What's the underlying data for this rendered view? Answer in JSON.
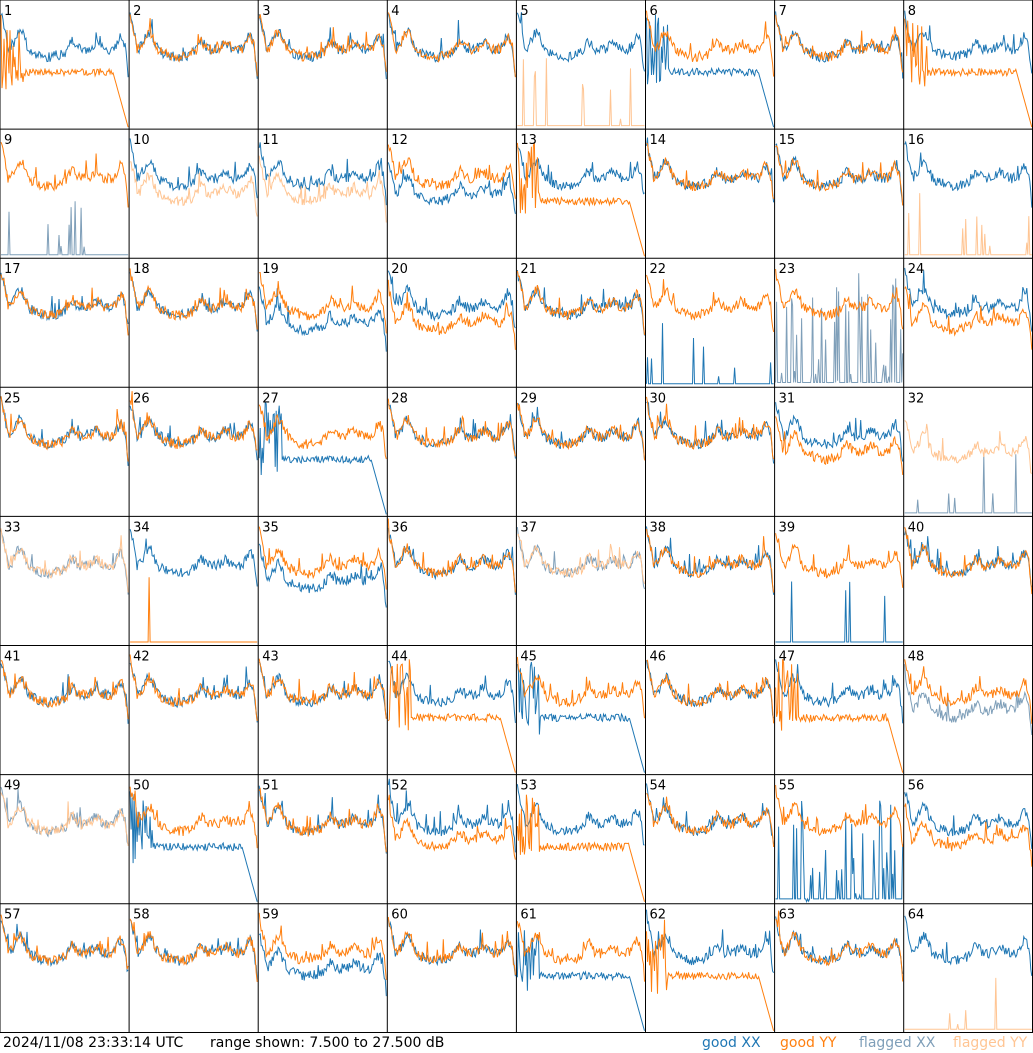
{
  "footer": {
    "timestamp": "2024/11/08 23:33:14 UTC",
    "range_label": "range shown: 7.500 to 27.500 dB"
  },
  "legend": {
    "good_xx": {
      "label": "good XX",
      "color": "#1f77b4"
    },
    "good_yy": {
      "label": "good YY",
      "color": "#ff7f0e"
    },
    "flagged_xx": {
      "label": "flagged XX",
      "color": "#7f9fb9"
    },
    "flagged_yy": {
      "label": "flagged YY",
      "color": "#ffc593"
    }
  },
  "chart_data": {
    "type": "line",
    "layout": "8x8 grid of small-multiple spectra",
    "y_range_db": [
      7.5,
      27.5
    ],
    "grid": false,
    "legend_placement": "bottom-right",
    "series": [
      {
        "name": "good XX",
        "color": "#1f77b4"
      },
      {
        "name": "good YY",
        "color": "#ff7f0e"
      },
      {
        "name": "flagged XX",
        "color": "#7f9fb9"
      },
      {
        "name": "flagged YY",
        "color": "#ffc593"
      }
    ],
    "panels": [
      {
        "id": 1,
        "xx": "good",
        "yy": "good",
        "xx_shape": "normal",
        "yy_shape": "sag"
      },
      {
        "id": 2,
        "xx": "good",
        "yy": "good",
        "xx_shape": "normal",
        "yy_shape": "normal"
      },
      {
        "id": 3,
        "xx": "good",
        "yy": "good",
        "xx_shape": "normal",
        "yy_shape": "normal"
      },
      {
        "id": 4,
        "xx": "good",
        "yy": "good",
        "xx_shape": "normal",
        "yy_shape": "normal"
      },
      {
        "id": 5,
        "xx": "good",
        "yy": "flagged",
        "xx_shape": "normal",
        "yy_shape": "dead"
      },
      {
        "id": 6,
        "xx": "good",
        "yy": "good",
        "xx_shape": "sag",
        "yy_shape": "normal"
      },
      {
        "id": 7,
        "xx": "good",
        "yy": "good",
        "xx_shape": "normal",
        "yy_shape": "normal"
      },
      {
        "id": 8,
        "xx": "good",
        "yy": "good",
        "xx_shape": "normal",
        "yy_shape": "sag"
      },
      {
        "id": 9,
        "xx": "flagged",
        "yy": "good",
        "xx_shape": "dead",
        "yy_shape": "normal"
      },
      {
        "id": 10,
        "xx": "good",
        "yy": "flagged",
        "xx_shape": "normal",
        "yy_shape": "low"
      },
      {
        "id": 11,
        "xx": "good",
        "yy": "flagged",
        "xx_shape": "normal",
        "yy_shape": "low"
      },
      {
        "id": 12,
        "xx": "good",
        "yy": "good",
        "xx_shape": "low",
        "yy_shape": "normal"
      },
      {
        "id": 13,
        "xx": "good",
        "yy": "good",
        "xx_shape": "normal",
        "yy_shape": "sag"
      },
      {
        "id": 14,
        "xx": "good",
        "yy": "good",
        "xx_shape": "normal",
        "yy_shape": "normal"
      },
      {
        "id": 15,
        "xx": "good",
        "yy": "good",
        "xx_shape": "normal",
        "yy_shape": "normal"
      },
      {
        "id": 16,
        "xx": "good",
        "yy": "flagged",
        "xx_shape": "normal",
        "yy_shape": "dead"
      },
      {
        "id": 17,
        "xx": "good",
        "yy": "good",
        "xx_shape": "normal",
        "yy_shape": "normal"
      },
      {
        "id": 18,
        "xx": "good",
        "yy": "good",
        "xx_shape": "normal",
        "yy_shape": "normal"
      },
      {
        "id": 19,
        "xx": "good",
        "yy": "good",
        "xx_shape": "low",
        "yy_shape": "normal"
      },
      {
        "id": 20,
        "xx": "good",
        "yy": "good",
        "xx_shape": "normal",
        "yy_shape": "low"
      },
      {
        "id": 21,
        "xx": "good",
        "yy": "good",
        "xx_shape": "normal",
        "yy_shape": "normal"
      },
      {
        "id": 22,
        "xx": "good",
        "yy": "good",
        "xx_shape": "dead",
        "yy_shape": "normal"
      },
      {
        "id": 23,
        "xx": "flagged",
        "yy": "good",
        "xx_shape": "noisy",
        "yy_shape": "normal"
      },
      {
        "id": 24,
        "xx": "good",
        "yy": "good",
        "xx_shape": "normal",
        "yy_shape": "low"
      },
      {
        "id": 25,
        "xx": "good",
        "yy": "good",
        "xx_shape": "normal",
        "yy_shape": "normal"
      },
      {
        "id": 26,
        "xx": "good",
        "yy": "good",
        "xx_shape": "normal",
        "yy_shape": "normal"
      },
      {
        "id": 27,
        "xx": "good",
        "yy": "good",
        "xx_shape": "sag",
        "yy_shape": "normal"
      },
      {
        "id": 28,
        "xx": "good",
        "yy": "good",
        "xx_shape": "normal",
        "yy_shape": "normal"
      },
      {
        "id": 29,
        "xx": "good",
        "yy": "good",
        "xx_shape": "normal",
        "yy_shape": "normal"
      },
      {
        "id": 30,
        "xx": "good",
        "yy": "good",
        "xx_shape": "normal",
        "yy_shape": "normal"
      },
      {
        "id": 31,
        "xx": "good",
        "yy": "good",
        "xx_shape": "normal",
        "yy_shape": "low"
      },
      {
        "id": 32,
        "xx": "flagged",
        "yy": "flagged",
        "xx_shape": "dead",
        "yy_shape": "low"
      },
      {
        "id": 33,
        "xx": "flagged",
        "yy": "flagged",
        "xx_shape": "normal",
        "yy_shape": "normal"
      },
      {
        "id": 34,
        "xx": "good",
        "yy": "good",
        "xx_shape": "normal",
        "yy_shape": "dead"
      },
      {
        "id": 35,
        "xx": "good",
        "yy": "good",
        "xx_shape": "low",
        "yy_shape": "normal"
      },
      {
        "id": 36,
        "xx": "good",
        "yy": "good",
        "xx_shape": "normal",
        "yy_shape": "normal"
      },
      {
        "id": 37,
        "xx": "flagged",
        "yy": "flagged",
        "xx_shape": "normal",
        "yy_shape": "normal"
      },
      {
        "id": 38,
        "xx": "good",
        "yy": "good",
        "xx_shape": "normal",
        "yy_shape": "normal"
      },
      {
        "id": 39,
        "xx": "good",
        "yy": "good",
        "xx_shape": "dead",
        "yy_shape": "normal"
      },
      {
        "id": 40,
        "xx": "good",
        "yy": "good",
        "xx_shape": "normal",
        "yy_shape": "normal"
      },
      {
        "id": 41,
        "xx": "good",
        "yy": "good",
        "xx_shape": "normal",
        "yy_shape": "normal"
      },
      {
        "id": 42,
        "xx": "good",
        "yy": "good",
        "xx_shape": "normal",
        "yy_shape": "normal"
      },
      {
        "id": 43,
        "xx": "good",
        "yy": "good",
        "xx_shape": "normal",
        "yy_shape": "normal"
      },
      {
        "id": 44,
        "xx": "good",
        "yy": "good",
        "xx_shape": "normal",
        "yy_shape": "sag"
      },
      {
        "id": 45,
        "xx": "good",
        "yy": "good",
        "xx_shape": "sag",
        "yy_shape": "normal"
      },
      {
        "id": 46,
        "xx": "good",
        "yy": "good",
        "xx_shape": "normal",
        "yy_shape": "normal"
      },
      {
        "id": 47,
        "xx": "good",
        "yy": "good",
        "xx_shape": "normal",
        "yy_shape": "sag"
      },
      {
        "id": 48,
        "xx": "flagged",
        "yy": "good",
        "xx_shape": "low",
        "yy_shape": "normal"
      },
      {
        "id": 49,
        "xx": "flagged",
        "yy": "flagged",
        "xx_shape": "normal",
        "yy_shape": "normal"
      },
      {
        "id": 50,
        "xx": "good",
        "yy": "good",
        "xx_shape": "sag",
        "yy_shape": "normal"
      },
      {
        "id": 51,
        "xx": "good",
        "yy": "good",
        "xx_shape": "normal",
        "yy_shape": "normal"
      },
      {
        "id": 52,
        "xx": "good",
        "yy": "good",
        "xx_shape": "normal",
        "yy_shape": "low"
      },
      {
        "id": 53,
        "xx": "good",
        "yy": "good",
        "xx_shape": "normal",
        "yy_shape": "sag"
      },
      {
        "id": 54,
        "xx": "good",
        "yy": "good",
        "xx_shape": "normal",
        "yy_shape": "normal"
      },
      {
        "id": 55,
        "xx": "good",
        "yy": "good",
        "xx_shape": "noisy",
        "yy_shape": "normal"
      },
      {
        "id": 56,
        "xx": "good",
        "yy": "good",
        "xx_shape": "normal",
        "yy_shape": "low"
      },
      {
        "id": 57,
        "xx": "good",
        "yy": "good",
        "xx_shape": "normal",
        "yy_shape": "normal"
      },
      {
        "id": 58,
        "xx": "good",
        "yy": "good",
        "xx_shape": "normal",
        "yy_shape": "normal"
      },
      {
        "id": 59,
        "xx": "good",
        "yy": "good",
        "xx_shape": "low",
        "yy_shape": "normal"
      },
      {
        "id": 60,
        "xx": "good",
        "yy": "good",
        "xx_shape": "normal",
        "yy_shape": "normal"
      },
      {
        "id": 61,
        "xx": "good",
        "yy": "good",
        "xx_shape": "sag",
        "yy_shape": "normal"
      },
      {
        "id": 62,
        "xx": "good",
        "yy": "good",
        "xx_shape": "normal",
        "yy_shape": "sag"
      },
      {
        "id": 63,
        "xx": "good",
        "yy": "good",
        "xx_shape": "normal",
        "yy_shape": "normal"
      },
      {
        "id": 64,
        "xx": "good",
        "yy": "flagged",
        "xx_shape": "normal",
        "yy_shape": "dead"
      }
    ]
  }
}
